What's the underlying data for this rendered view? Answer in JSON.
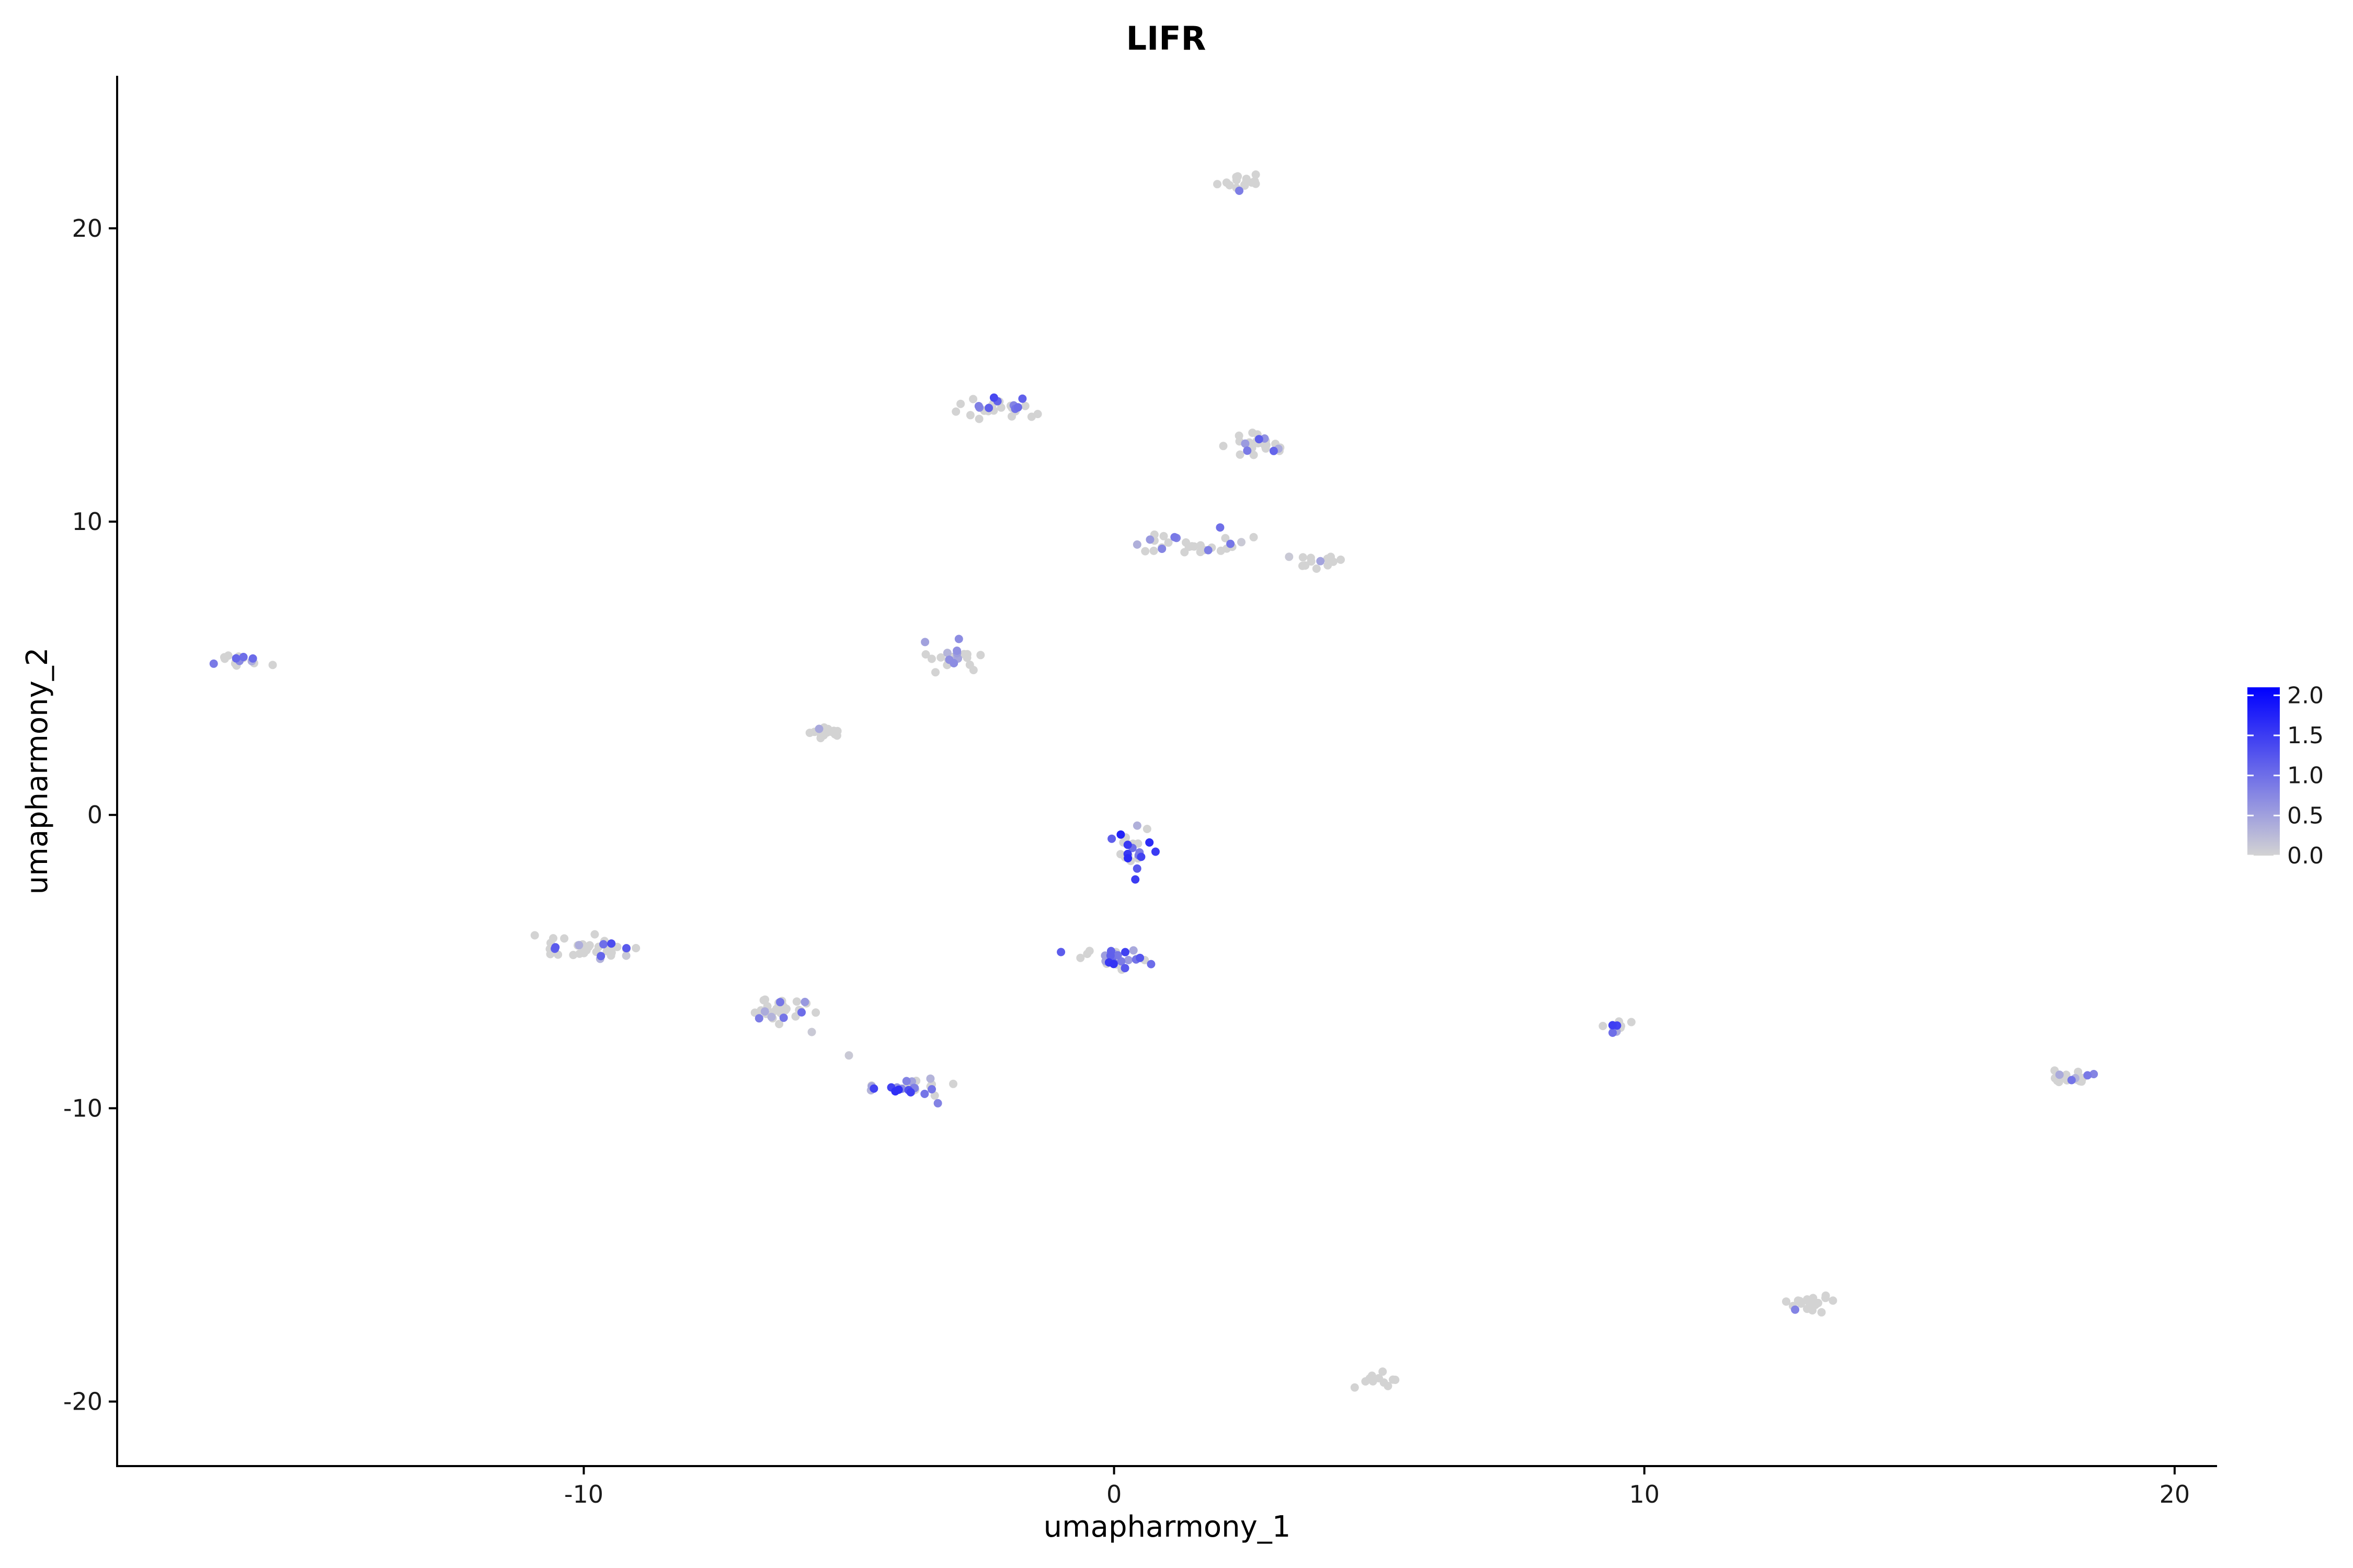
{
  "chart_data": {
    "type": "scatter",
    "title": "LIFR",
    "xlabel": "umapharmony_1",
    "ylabel": "umapharmony_2",
    "xlim": [
      -18.8,
      20.8
    ],
    "ylim": [
      -22.2,
      25.2
    ],
    "x_ticks": [
      -10,
      0,
      10,
      20
    ],
    "y_ticks": [
      -20,
      -10,
      0,
      10,
      20
    ],
    "grid": false,
    "color_scale": {
      "low": "#d3d3d3",
      "high": "#0000ff",
      "min": 0,
      "max": 2.1,
      "ticks": [
        {
          "value": 2.0,
          "label": "2.0"
        },
        {
          "value": 1.5,
          "label": "1.5"
        },
        {
          "value": 1.0,
          "label": "1.0"
        },
        {
          "value": 0.5,
          "label": "0.5"
        },
        {
          "value": 0.0,
          "label": "0.0"
        }
      ],
      "legend_position": "right"
    },
    "clusters": [
      {
        "x": 2.4,
        "y": 21.6,
        "sx": 0.22,
        "sy": 0.18,
        "n": 16,
        "expr": 0.3
      },
      {
        "x": -2.2,
        "y": 13.9,
        "sx": 0.42,
        "sy": 0.2,
        "n": 30,
        "expr": 0.6
      },
      {
        "x": 2.8,
        "y": 12.5,
        "sx": 0.35,
        "sy": 0.2,
        "n": 26,
        "expr": 0.5
      },
      {
        "x": 1.5,
        "y": 9.2,
        "sx": 0.48,
        "sy": 0.14,
        "n": 28,
        "expr": 0.35
      },
      {
        "x": 3.8,
        "y": 8.7,
        "sx": 0.22,
        "sy": 0.18,
        "n": 12,
        "expr": 0.05
      },
      {
        "x": -16.5,
        "y": 5.3,
        "sx": 0.22,
        "sy": 0.17,
        "n": 16,
        "expr": 0.6
      },
      {
        "x": -3.1,
        "y": 5.4,
        "sx": 0.22,
        "sy": 0.22,
        "n": 26,
        "expr": 0.2
      },
      {
        "x": -5.5,
        "y": 2.8,
        "sx": 0.2,
        "sy": 0.1,
        "n": 16,
        "expr": 0.2
      },
      {
        "x": 0.4,
        "y": -1.2,
        "sx": 0.22,
        "sy": 0.26,
        "n": 24,
        "expr": 1.0
      },
      {
        "x": 0.0,
        "y": -4.9,
        "sx": 0.3,
        "sy": 0.18,
        "n": 32,
        "expr": 0.9
      },
      {
        "x": -9.9,
        "y": -4.5,
        "sx": 0.4,
        "sy": 0.22,
        "n": 36,
        "expr": 0.6
      },
      {
        "x": -6.3,
        "y": -6.7,
        "sx": 0.32,
        "sy": 0.26,
        "n": 32,
        "expr": 0.5
      },
      {
        "x": -4.0,
        "y": -9.3,
        "sx": 0.38,
        "sy": 0.2,
        "n": 32,
        "expr": 0.9
      },
      {
        "x": 9.6,
        "y": -7.2,
        "sx": 0.2,
        "sy": 0.1,
        "n": 12,
        "expr": 0.7
      },
      {
        "x": 18.1,
        "y": -8.9,
        "sx": 0.26,
        "sy": 0.12,
        "n": 18,
        "expr": 0.4
      },
      {
        "x": 13.1,
        "y": -16.6,
        "sx": 0.24,
        "sy": 0.16,
        "n": 20,
        "expr": 0.3
      },
      {
        "x": 5.0,
        "y": -19.3,
        "sx": 0.22,
        "sy": 0.12,
        "n": 14,
        "expr": 0.05
      }
    ],
    "extra_points": [
      {
        "x": 2.0,
        "y": 9.8,
        "v": 1.0
      },
      {
        "x": 2.4,
        "y": 9.3,
        "v": 0.1
      },
      {
        "x": 3.3,
        "y": 8.8,
        "v": 0.1
      },
      {
        "x": -5.0,
        "y": -8.2,
        "v": 0.1
      },
      {
        "x": 0.4,
        "y": -2.2,
        "v": 1.5
      },
      {
        "x": -5.7,
        "y": -7.4,
        "v": 0.1
      },
      {
        "x": -9.2,
        "y": -4.8,
        "v": 0.1
      }
    ]
  }
}
